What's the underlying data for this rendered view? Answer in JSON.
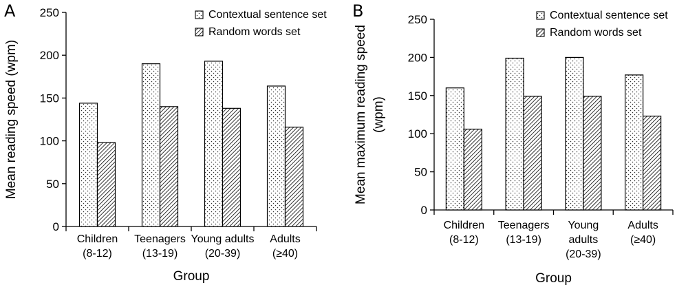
{
  "chart_data": [
    {
      "panel_label": "A",
      "type": "bar",
      "categories": [
        [
          "Children",
          "(8-12)"
        ],
        [
          "Teenagers",
          "(13-19)"
        ],
        [
          "Young adults",
          "(20-39)"
        ],
        [
          "Adults",
          "(≥40)"
        ]
      ],
      "series": [
        {
          "name": "Contextual sentence set",
          "pattern": "dots",
          "values": [
            144,
            190,
            193,
            164
          ]
        },
        {
          "name": "Random words set",
          "pattern": "hatch",
          "values": [
            98,
            140,
            138,
            116
          ]
        }
      ],
      "xlabel": "Group",
      "ylabel": [
        "Mean reading speed (wpm)"
      ],
      "ylim": [
        0,
        250
      ],
      "yticks": [
        0,
        50,
        100,
        150,
        200,
        250
      ],
      "grid": false,
      "legend": "top-right"
    },
    {
      "panel_label": "B",
      "type": "bar",
      "categories": [
        [
          "Children",
          "(8-12)"
        ],
        [
          "Teenagers",
          "(13-19)"
        ],
        [
          "Young",
          "adults",
          "(20-39)"
        ],
        [
          "Adults",
          "(≥40)"
        ]
      ],
      "series": [
        {
          "name": "Contextual sentence set",
          "pattern": "dots",
          "values": [
            160,
            199,
            200,
            177
          ]
        },
        {
          "name": "Random words set",
          "pattern": "hatch",
          "values": [
            106,
            149,
            149,
            123
          ]
        }
      ],
      "xlabel": "Group",
      "ylabel": [
        "Mean maximum reading speed",
        "(wpm)"
      ],
      "ylim": [
        0,
        250
      ],
      "yticks": [
        0,
        50,
        100,
        150,
        200,
        250
      ],
      "grid": false,
      "legend": "top-right"
    }
  ]
}
